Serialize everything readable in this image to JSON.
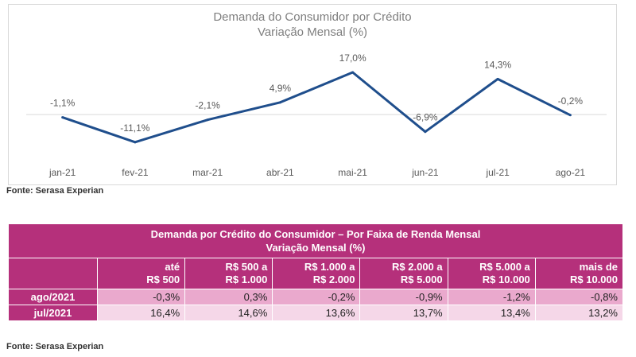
{
  "chart_data": {
    "type": "line",
    "title": "Demanda do Consumidor por Crédito",
    "subtitle": "Variação Mensal (%)",
    "categories": [
      "jan-21",
      "fev-21",
      "mar-21",
      "abr-21",
      "mai-21",
      "jun-21",
      "jul-21",
      "ago-21"
    ],
    "series": [
      {
        "name": "Demanda do Consumidor por Crédito",
        "values": [
          -1.1,
          -11.1,
          -2.1,
          4.9,
          17.0,
          -6.9,
          14.3,
          -0.2
        ]
      }
    ],
    "data_labels": [
      "-1,1%",
      "-11,1%",
      "-2,1%",
      "4,9%",
      "17,0%",
      "-6,9%",
      "14,3%",
      "-0,2%"
    ],
    "ylim": [
      -15,
      25
    ],
    "line_color": "#1f4e8c"
  },
  "chart_source": "Fonte: Serasa Experian",
  "table": {
    "title_line1": "Demanda por Crédito do Consumidor – Por Faixa de Renda Mensal",
    "title_line2": "Variação Mensal (%)",
    "headers": [
      [
        "até",
        "R$ 500"
      ],
      [
        "R$ 500 a",
        "R$ 1.000"
      ],
      [
        "R$ 1.000 a",
        "R$ 2.000"
      ],
      [
        "R$ 2.000 a",
        "R$ 5.000"
      ],
      [
        "R$ 5.000 a",
        "R$ 10.000"
      ],
      [
        "mais de",
        "R$ 10.000"
      ]
    ],
    "rows": [
      {
        "label": "ago/2021",
        "values": [
          "-0,3%",
          "0,3%",
          "-0,2%",
          "-0,9%",
          "-1,2%",
          "-0,8%"
        ]
      },
      {
        "label": "jul/2021",
        "values": [
          "16,4%",
          "14,6%",
          "13,6%",
          "13,7%",
          "13,4%",
          "13,2%"
        ]
      }
    ],
    "source": "Fonte: Serasa Experian"
  }
}
